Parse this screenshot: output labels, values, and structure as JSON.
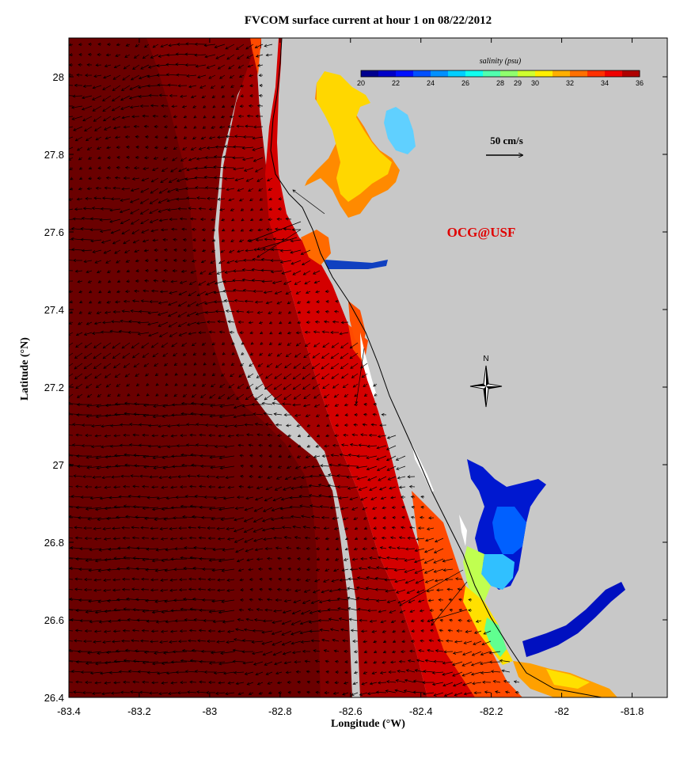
{
  "title": "FVCOM surface current at hour 1 on 08/22/2012",
  "x_axis": {
    "label": "Longitude (°W)",
    "min": -83.4,
    "max": -81.7,
    "ticks": [
      "-83.4",
      "-83.2",
      "-83",
      "-82.8",
      "-82.6",
      "-82.4",
      "-82.2",
      "-82",
      "-81.8"
    ],
    "tick_values": [
      -83.4,
      -83.2,
      -83.0,
      -82.8,
      -82.6,
      -82.4,
      -82.2,
      -82.0,
      -81.8
    ]
  },
  "y_axis": {
    "label": "Latitude (°N)",
    "min": 26.4,
    "max": 28.1,
    "ticks": [
      "26.4",
      "26.6",
      "26.8",
      "27",
      "27.2",
      "27.4",
      "27.6",
      "27.8",
      "28"
    ],
    "tick_values": [
      26.4,
      26.6,
      26.8,
      27.0,
      27.2,
      27.4,
      27.6,
      27.8,
      28.0
    ]
  },
  "colorbar": {
    "title": "salinity (psu)",
    "min": 20,
    "max": 36,
    "tick_labels": [
      "20",
      "22",
      "24",
      "26",
      "28",
      "29",
      "30",
      "32",
      "34",
      "36"
    ],
    "colors": [
      "#00008f",
      "#0000c8",
      "#0010ff",
      "#0050ff",
      "#0090ff",
      "#00cfff",
      "#10ffef",
      "#50ffaf",
      "#90ff6f",
      "#cfff30",
      "#ffef00",
      "#ffaf00",
      "#ff7000",
      "#ff3000",
      "#ef0000",
      "#af0000"
    ]
  },
  "velocity_scale": {
    "label": "50 cm/s"
  },
  "credit": {
    "text": "OCG@USF",
    "color": "#e00000"
  },
  "north_arrow": {
    "label": "N"
  },
  "colors": {
    "land": "#c8c8c8",
    "deep_water": "#800000",
    "mid_water": "#a40000",
    "shelf_water": "#cc0000",
    "coastal_water": "#ff3000",
    "arrow": "#000000"
  },
  "chart_data": {
    "type": "other",
    "variable": "salinity (psu)",
    "vector_field": "surface current",
    "x_range": [
      -83.4,
      -81.7
    ],
    "y_range": [
      26.4,
      28.1
    ]
  }
}
